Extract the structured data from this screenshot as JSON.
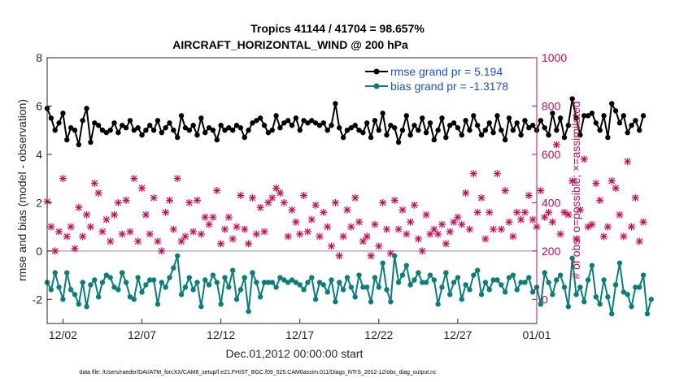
{
  "chart_data": {
    "type": "line",
    "title": "Tropics 41144 / 41704 = 98.657%",
    "subtitle": "AIRCRAFT_HORIZONTAL_WIND @ 200 hPa",
    "xlabel": "Dec.01,2012 00:00:00 start",
    "ylabel": "rmse and bias (model - observation)",
    "ylabel_right": "# of obs: o=possible; ×=assimilated",
    "xlim": [
      0,
      31
    ],
    "ylim": [
      -3,
      8
    ],
    "ylim_right": [
      -100,
      1000
    ],
    "x_ticks": [
      {
        "x": 1,
        "label": "12/02"
      },
      {
        "x": 6,
        "label": "12/07"
      },
      {
        "x": 11,
        "label": "12/12"
      },
      {
        "x": 16,
        "label": "12/17"
      },
      {
        "x": 21,
        "label": "12/22"
      },
      {
        "x": 26,
        "label": "12/27"
      },
      {
        "x": 31,
        "label": "01/01"
      }
    ],
    "y_ticks": [
      -2,
      0,
      2,
      4,
      6,
      8
    ],
    "y_ticks_right": [
      0,
      200,
      400,
      600,
      800,
      1000
    ],
    "zero_line": 0,
    "legend_position": "top-right",
    "colors": {
      "rmse": "#000000",
      "bias": "#0a7d7d",
      "obs": "#cc0a55",
      "legend_text": "#1a4fd6",
      "zero_line": "#b3b3b3"
    },
    "x_step": 0.25,
    "series": [
      {
        "name": "rmse grand pr = 5.194",
        "values": [
          5.9,
          5.5,
          5.0,
          5.3,
          5.7,
          4.6,
          5.1,
          5.0,
          4.4,
          5.4,
          5.9,
          4.5,
          5.3,
          5.2,
          5.0,
          4.9,
          5.0,
          5.3,
          4.9,
          5.2,
          5.1,
          5.4,
          5.0,
          5.1,
          4.8,
          5.0,
          5.2,
          5.0,
          5.4,
          4.9,
          5.1,
          5.3,
          5.0,
          4.7,
          5.6,
          5.1,
          5.0,
          5.2,
          4.8,
          5.5,
          4.9,
          5.1,
          5.0,
          4.6,
          5.2,
          5.0,
          5.1,
          5.0,
          5.2,
          5.1,
          4.7,
          5.0,
          5.3,
          5.4,
          5.5,
          5.2,
          4.9,
          5.0,
          5.6,
          5.1,
          5.3,
          5.4,
          5.2,
          5.5,
          5.0,
          5.4,
          5.3,
          5.4,
          5.3,
          5.2,
          5.3,
          5.0,
          5.2,
          6.1,
          5.1,
          4.7,
          5.0,
          5.1,
          5.2,
          5.0,
          4.9,
          5.3,
          4.7,
          5.4,
          5.0,
          5.7,
          4.8,
          5.2,
          5.1,
          4.5,
          5.0,
          5.6,
          4.8,
          5.2,
          5.0,
          5.5,
          4.9,
          5.3,
          4.6,
          5.0,
          5.5,
          4.7,
          5.2,
          5.3,
          5.1,
          4.8,
          5.4,
          5.0,
          5.6,
          5.2,
          4.8,
          5.0,
          5.3,
          4.9,
          5.6,
          5.0,
          4.6,
          5.5,
          5.0,
          5.3,
          4.8,
          5.4,
          5.1,
          5.2,
          5.0,
          5.4,
          5.1,
          4.8,
          5.7,
          5.0,
          5.5,
          4.7,
          5.2,
          6.3,
          5.5,
          4.8,
          5.6,
          5.6,
          5.7,
          5.3,
          5.0,
          5.6,
          4.7,
          6.1,
          5.8,
          5.3,
          5.6,
          4.9,
          5.2,
          5.4,
          5.0,
          5.6
        ]
      },
      {
        "name": "bias grand pr = -1.3178",
        "values": [
          -1.3,
          -1.6,
          -0.9,
          -1.5,
          -2.0,
          -0.9,
          -1.6,
          -1.8,
          -2.2,
          -1.3,
          -2.3,
          -1.4,
          -1.2,
          -1.9,
          -1.3,
          -1.0,
          -1.1,
          -1.5,
          -1.6,
          -0.9,
          -1.3,
          -1.9,
          -2.0,
          -1.1,
          -1.7,
          -1.4,
          -1.2,
          -1.2,
          -2.2,
          -1.3,
          -1.5,
          -1.1,
          -0.7,
          -0.2,
          -1.8,
          -1.5,
          -1.1,
          -1.6,
          -1.3,
          -2.3,
          -1.2,
          -1.4,
          -1.0,
          -1.3,
          -2.2,
          -1.1,
          -1.5,
          -0.8,
          -2.0,
          -1.6,
          -1.1,
          -2.5,
          -0.9,
          -1.3,
          -1.9,
          -1.3,
          -1.3,
          -1.3,
          -1.5,
          -1.1,
          -1.2,
          -1.3,
          -1.2,
          -1.3,
          -1.4,
          -1.6,
          -1.3,
          -1.1,
          -2.0,
          -1.3,
          -1.4,
          -1.7,
          -1.2,
          -2.1,
          -1.3,
          -1.6,
          -1.1,
          -1.5,
          -1.9,
          -1.0,
          -1.5,
          -1.5,
          -2.1,
          -1.1,
          -1.5,
          -0.5,
          -1.6,
          -2.1,
          -0.2,
          -1.3,
          -1.0,
          -0.6,
          -1.4,
          -1.2,
          -0.9,
          -1.3,
          -1.3,
          -1.0,
          -1.2,
          -2.2,
          -1.5,
          -0.9,
          -1.8,
          -1.3,
          -1.1,
          -2.0,
          -1.4,
          -1.6,
          -1.0,
          -0.8,
          -1.8,
          -1.3,
          -1.6,
          -1.2,
          -1.2,
          -1.4,
          -1.7,
          -1.1,
          -1.0,
          -1.6,
          -1.3,
          -1.3,
          -1.1,
          -1.7,
          -1.5,
          -2.2,
          -0.9,
          -1.3,
          -1.8,
          -1.2,
          -1.0,
          -1.5,
          -2.3,
          -0.3,
          -1.8,
          -1.5,
          -2.1,
          -1.2,
          -0.6,
          -1.9,
          -2.2,
          -1.2,
          -1.9,
          -2.6,
          -1.4,
          -0.5,
          -1.7,
          -1.8,
          -2.3,
          -1.5,
          -1.5,
          -1.0,
          -2.6,
          -2.0
        ]
      },
      {
        "name": "obs",
        "values": [
          405,
          300,
          200,
          280,
          500,
          260,
          300,
          210,
          380,
          260,
          350,
          300,
          480,
          440,
          280,
          330,
          240,
          350,
          400,
          270,
          410,
          280,
          500,
          240,
          460,
          350,
          270,
          420,
          240,
          200,
          360,
          410,
          290,
          500,
          240,
          260,
          400,
          280,
          410,
          270,
          340,
          310,
          340,
          450,
          230,
          290,
          340,
          250,
          300,
          430,
          290,
          230,
          420,
          270,
          380,
          280,
          400,
          420,
          460,
          440,
          400,
          260,
          370,
          320,
          270,
          430,
          280,
          330,
          390,
          260,
          360,
          300,
          220,
          400,
          180,
          260,
          370,
          300,
          420,
          320,
          240,
          260,
          180,
          310,
          220,
          400,
          290,
          190,
          410,
          290,
          370,
          270,
          320,
          390,
          250,
          200,
          350,
          270,
          290,
          270,
          310,
          230,
          280,
          320,
          340,
          310,
          440,
          290,
          520,
          360,
          420,
          250,
          360,
          290,
          520,
          290,
          450,
          320,
          260,
          360,
          330,
          360,
          430,
          330,
          300,
          450,
          340,
          360,
          320,
          640,
          270,
          360,
          350,
          490,
          250,
          370,
          580,
          300,
          310,
          480,
          410,
          260,
          300,
          490,
          460,
          350,
          260,
          570,
          300,
          420,
          240,
          320
        ]
      }
    ]
  },
  "footer": "data file: /Users/raeder/DAI/ATM_forcXX/CAM6_setup/f.e21.FHIST_BGC.f09_025.CAM6assim.011/Diags_NTrS_2012-12/obs_diag_output.nc"
}
